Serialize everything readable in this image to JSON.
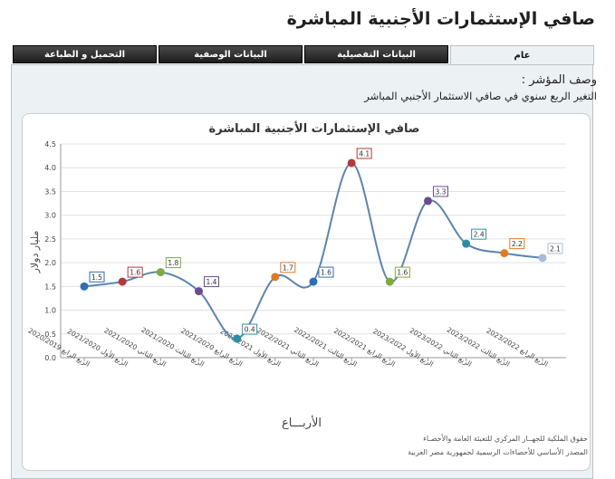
{
  "page": {
    "title": "صافي الإستثمارات الأجنبية المباشرة"
  },
  "tabs": [
    {
      "label": "عام",
      "active": true
    },
    {
      "label": "البيانات التفصيلية",
      "active": false
    },
    {
      "label": "البيانات الوصفية",
      "active": false
    },
    {
      "label": "التحميل و الطباعة",
      "active": false
    }
  ],
  "indicator": {
    "label": "وصف المؤشر :",
    "description": "التغير الربع سنوي في صافي الاستثمار الأجنبي المباشر"
  },
  "credits": {
    "line1": "حقوق الملكية للجهــاز المركزي للتعبئة العامة والأحصـاء",
    "line2": "المصدر الأساسي للأحصاءات الرسمية لجمهورية مصر العربية"
  },
  "chart_data": {
    "type": "line",
    "title": "صافي الإستثمارات الأجنبية المباشرة",
    "xlabel": "الأربـــاع",
    "ylabel": "مليار دولار",
    "ylim": [
      0,
      4.5
    ],
    "yticks": [
      "0.0",
      "0.5",
      "1.0",
      "1.5",
      "2.0",
      "2.5",
      "3.0",
      "3.5",
      "4.0",
      "4.5"
    ],
    "grid": true,
    "categories": [
      "الربع الرابع 2020/2019",
      "الربع الأول 2021/2020",
      "الربع الثاني 2021/2020",
      "الربع الثالث 2021/2020",
      "الربع الرابع 2021/2020",
      "الربع الأول 2022/2021",
      "الربع الثاني 2022/2021",
      "الربع الثالث 2022/2021",
      "الربع الرابع 2022/2021",
      "الربع الأول 2023/2022",
      "الربع الثاني 2023/2022",
      "الربع الثالث 2023/2022",
      "الربع الرابع 2023/2022"
    ],
    "values": [
      1.5,
      1.6,
      1.8,
      1.4,
      0.4,
      1.7,
      1.6,
      4.1,
      1.6,
      3.3,
      2.4,
      2.2,
      2.1
    ],
    "labels": [
      "1.5",
      "1.6",
      "1.8",
      "1.4",
      "0.4",
      "1.7",
      "1.6",
      "4.1",
      "1.6",
      "3.3",
      "2.4",
      "2.2",
      "2.1"
    ],
    "line_color": "#5b84b1",
    "point_colors": [
      "#2f6eb4",
      "#b23a3a",
      "#7eab3a",
      "#6b4d8c",
      "#2b8fa3",
      "#e07b22",
      "#2f6eb4",
      "#b23a3a",
      "#7eab3a",
      "#6b4d8c",
      "#2b8fa3",
      "#e07b22",
      "#a8bcd6"
    ]
  }
}
